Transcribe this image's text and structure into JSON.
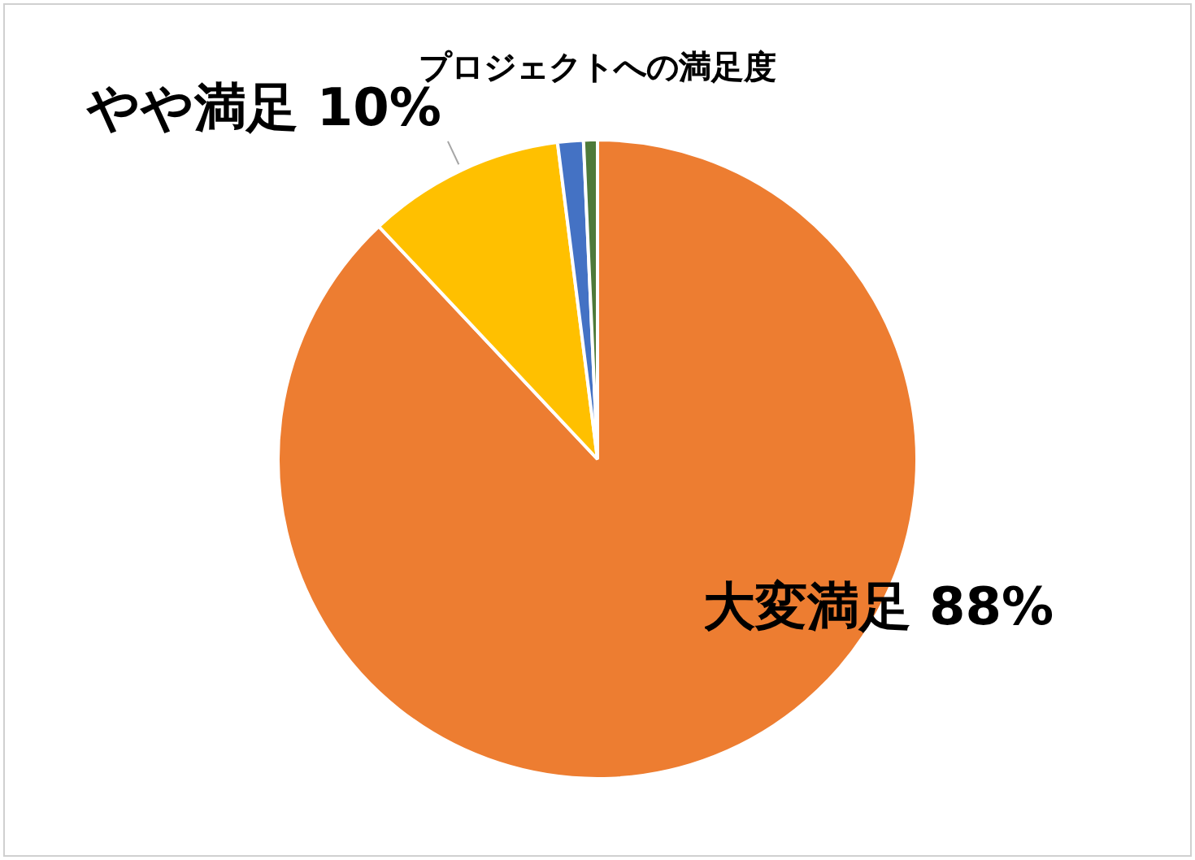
{
  "chart_data": {
    "type": "pie",
    "title": "プロジェクトへの満足度",
    "categories": [
      "大変満足",
      "やや満足",
      null,
      null
    ],
    "values": [
      88,
      10,
      1.3,
      0.7
    ],
    "colors": [
      "#ed7d31",
      "#ffc000",
      "#4472c4",
      "#4e7a3a"
    ],
    "value_labels": [
      "88%",
      "10%",
      null,
      null
    ],
    "legend": false
  }
}
